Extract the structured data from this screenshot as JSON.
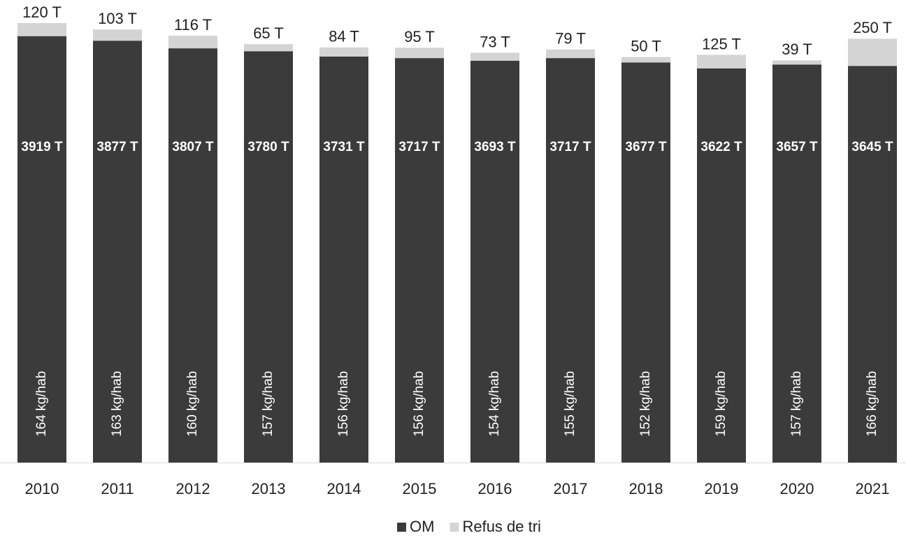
{
  "chart_data": {
    "type": "stacked_bar",
    "categories": [
      "2010",
      "2011",
      "2012",
      "2013",
      "2014",
      "2015",
      "2016",
      "2017",
      "2018",
      "2019",
      "2020",
      "2021"
    ],
    "series": [
      {
        "name": "OM",
        "color": "#3b3b3b",
        "values": [
          3919,
          3877,
          3807,
          3780,
          3731,
          3717,
          3693,
          3717,
          3677,
          3622,
          3657,
          3645
        ],
        "value_labels": [
          "3919 T",
          "3877 T",
          "3807 T",
          "3780 T",
          "3731 T",
          "3717 T",
          "3693 T",
          "3717 T",
          "3677 T",
          "3622 T",
          "3657 T",
          "3645 T"
        ]
      },
      {
        "name": "Refus de tri",
        "color": "#d4d4d4",
        "values": [
          120,
          103,
          116,
          65,
          84,
          95,
          73,
          79,
          50,
          125,
          39,
          250
        ],
        "value_labels": [
          "120 T",
          "103 T",
          "116 T",
          "65 T",
          "84 T",
          "95 T",
          "73 T",
          "79 T",
          "50 T",
          "125 T",
          "39 T",
          "250 T"
        ]
      }
    ],
    "annotations": [
      "164 kg/hab",
      "163 kg/hab",
      "160 kg/hab",
      "157 kg/hab",
      "156 kg/hab",
      "156 kg/hab",
      "154 kg/hab",
      "155 kg/hab",
      "152 kg/hab",
      "159 kg/hab",
      "157 kg/hab",
      "166 kg/hab"
    ],
    "legend": "bottom"
  }
}
